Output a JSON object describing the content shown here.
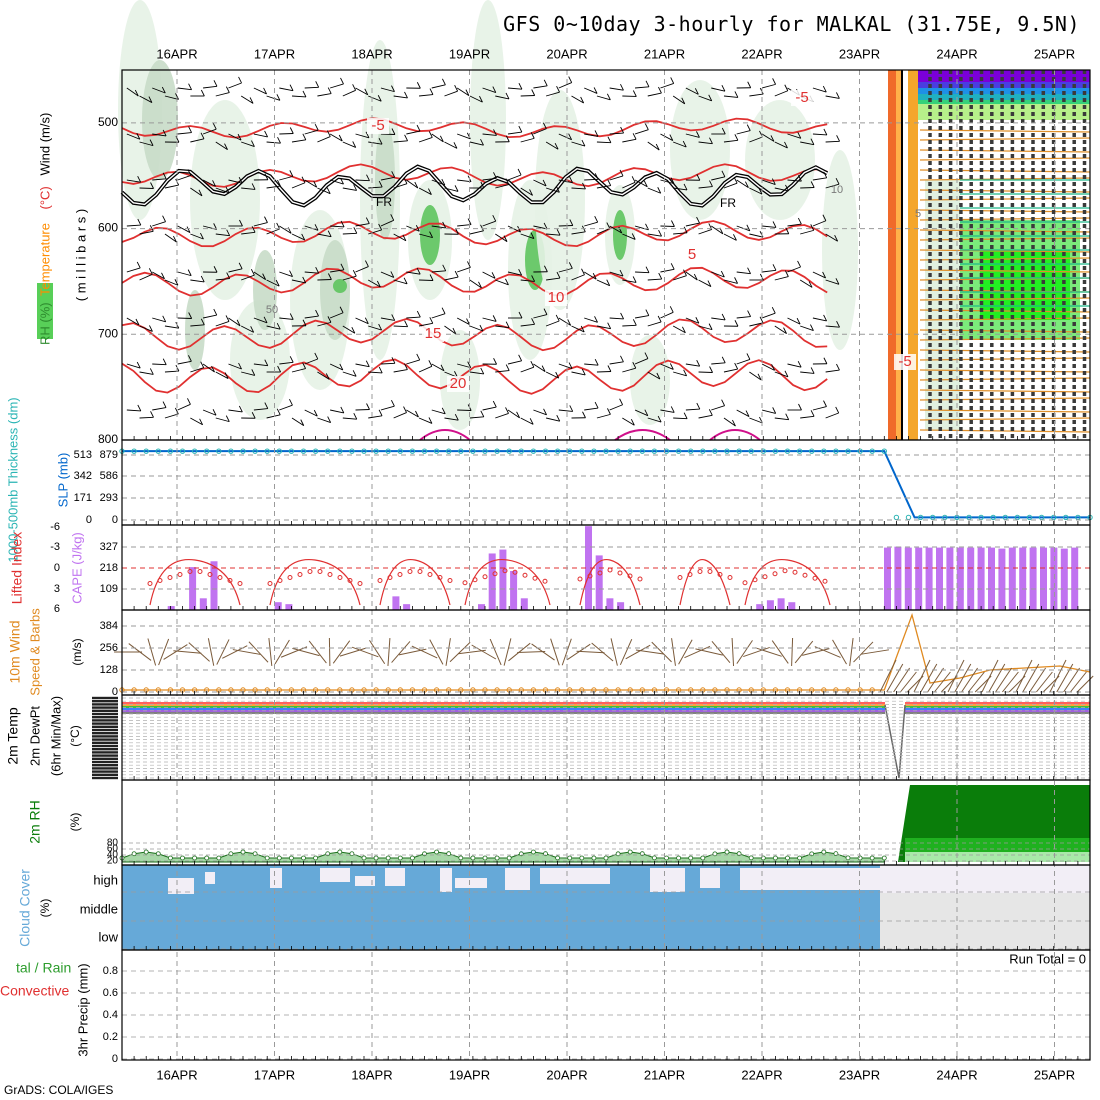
{
  "header": {
    "title": "GFS 0~10day 3-hourly for MALKAL (31.75E, 9.5N)",
    "footer": "GrADS: COLA/IGES"
  },
  "days": [
    "16APR",
    "17APR",
    "18APR",
    "19APR",
    "20APR",
    "21APR",
    "22APR",
    "23APR",
    "24APR",
    "25APR"
  ],
  "chart_data": [
    {
      "type": "line",
      "panel": "upper-air",
      "ylabel_parts": [
        {
          "text": "RH (%)",
          "color": "#2e8b2e"
        },
        {
          "text": "Temperature",
          "color": "#ff8c00"
        },
        {
          "text": "(°C)",
          "color": "#e03030"
        },
        {
          "text": "Wind (m/s)",
          "color": "#000000"
        }
      ],
      "yunit": "( m i l l i b a r s )",
      "yticks": [
        "500",
        "600",
        "700",
        "800"
      ],
      "ylim": [
        450,
        800
      ],
      "isotherm_labels": [
        "-5",
        "-5",
        "5",
        "10",
        "15",
        "20",
        "-5"
      ],
      "freezing_labels": [
        "FR",
        "FR"
      ],
      "rh_labels": [
        "50",
        "10",
        "5"
      ],
      "isotherms": [
        {
          "label": "-5",
          "level": 505
        },
        {
          "label": "0",
          "level": 550
        },
        {
          "label": "5",
          "level": 605
        },
        {
          "label": "10",
          "level": 650
        },
        {
          "label": "15",
          "level": 700
        },
        {
          "label": "20",
          "level": 740
        }
      ]
    },
    {
      "type": "line",
      "panel": "thickness-slp",
      "ylabel_left": "1000-500mb Thickness (dm)",
      "ylabel_right": "SLP (mb)",
      "left_ticks": [
        "513",
        "342",
        "171",
        "0"
      ],
      "right_ticks": [
        "879",
        "586",
        "293",
        "0"
      ],
      "ylim": [
        0,
        900
      ],
      "series": [
        {
          "name": "SLP",
          "x": [
            0,
            58
          ],
          "values": [
            860,
            860
          ]
        },
        {
          "name": "SLP",
          "x": [
            58,
            61,
            80
          ],
          "values": [
            860,
            20,
            20
          ]
        }
      ]
    },
    {
      "type": "bar",
      "panel": "li-cape",
      "ylabel_left": "Lifted Index",
      "ylabel_right": "CAPE (J/kg)",
      "left_ticks": [
        "-6",
        "-3",
        "0",
        "3",
        "6"
      ],
      "right_ticks": [
        "327",
        "218",
        "109"
      ],
      "ylim": [
        0,
        436
      ],
      "cape_values": [
        0,
        0,
        0,
        20,
        220,
        60,
        250,
        0,
        0,
        0,
        0,
        0,
        0,
        40,
        30,
        0,
        0,
        0,
        0,
        0,
        0,
        0,
        0,
        0,
        0,
        0,
        0,
        0,
        0,
        0,
        0,
        0,
        0,
        0,
        0,
        0,
        0,
        30,
        290,
        310,
        200,
        60,
        0,
        0,
        0,
        0,
        0,
        0,
        0,
        0,
        0,
        0,
        0,
        0,
        0,
        0,
        0,
        0,
        430,
        280,
        60,
        40,
        0,
        0,
        0,
        0,
        0,
        0,
        0,
        0,
        0,
        0,
        0,
        0,
        0,
        0,
        0,
        0,
        0,
        0,
        0,
        0,
        0,
        0,
        0,
        0,
        0,
        0,
        20,
        0,
        0,
        0,
        0,
        0,
        0,
        0,
        0,
        0,
        0,
        30,
        50,
        60,
        40,
        0,
        0,
        0,
        0,
        0,
        0,
        0,
        0,
        0,
        0,
        0,
        0,
        0,
        0,
        0,
        0,
        0,
        0,
        0,
        0,
        0,
        0,
        0,
        0,
        0,
        0,
        0,
        0,
        0,
        0,
        0,
        0,
        0,
        0,
        0,
        0,
        0,
        0,
        0,
        0,
        0,
        0,
        0,
        0,
        0,
        0,
        0,
        0,
        0,
        0,
        0,
        0,
        0,
        0,
        0,
        0,
        0,
        0,
        0,
        0,
        0,
        0,
        0,
        0,
        0,
        0,
        0,
        0,
        0,
        0,
        0,
        0,
        0,
        0,
        0,
        0,
        0,
        0,
        0,
        0,
        0,
        0,
        0,
        0,
        0,
        0,
        0,
        0,
        0,
        0,
        0,
        0,
        0,
        0,
        0,
        0,
        0,
        0,
        0
      ],
      "cape_late_values": [
        320,
        325,
        320,
        320,
        320,
        320,
        320,
        320,
        320,
        320,
        320,
        315,
        320,
        320,
        320,
        320,
        320,
        315,
        320
      ]
    },
    {
      "type": "line",
      "panel": "wind10m",
      "ylabel_main": "10m Wind",
      "ylabel_sub": "Speed & Barbs",
      "yunit": "(m/s)",
      "yticks": [
        "384",
        "256",
        "128",
        "0"
      ],
      "ylim": [
        0,
        420
      ],
      "series": [
        {
          "name": "Speed",
          "x": [
            0,
            58,
            61,
            62,
            64,
            66,
            68,
            70,
            72,
            74,
            76,
            78,
            80
          ],
          "values": [
            2,
            2,
            450,
            20,
            30,
            40,
            110,
            120,
            120,
            125,
            120,
            115,
            110
          ]
        }
      ]
    },
    {
      "type": "line",
      "panel": "temp2m",
      "ylabel_main": "2m Temp",
      "ylabel_sub": "2m DewPt",
      "ylabel_sub2": "(6hr Min/Max)",
      "yunit": "(°C)",
      "ylim": [
        0,
        1
      ]
    },
    {
      "type": "area",
      "panel": "rh2m",
      "ylabel": "2m RH",
      "yunit": "(%)",
      "yticks": [
        "80",
        "60",
        "40",
        "20"
      ],
      "ylim": [
        0,
        100
      ]
    },
    {
      "type": "bar",
      "panel": "cloud",
      "ylabel": "Cloud Cover",
      "yunit": "(%)",
      "categories": [
        "high",
        "middle",
        "low"
      ]
    },
    {
      "type": "bar",
      "panel": "precip",
      "ylabel_parts": [
        {
          "text": "tal / Rain",
          "color": "#2e9d2e"
        },
        {
          "text": "Convective",
          "color": "#e03030"
        }
      ],
      "ylabel_main": "3hr Precip (mm)",
      "yticks": [
        "0.8",
        "0.6",
        "0.4",
        "0.2",
        "0"
      ],
      "ylim": [
        0,
        1
      ],
      "run_total": "Run Total = 0"
    }
  ],
  "colors": {
    "grid": "#9a9a9a",
    "temp": "#e03030",
    "freezing": "#000000",
    "rh_light": "#e6f2e6",
    "rh_mid": "#c8dcc8",
    "rh_high": "#5ec45e",
    "cape": "#c073f0",
    "li": "#e03030",
    "slp": "#0066cc",
    "thickness": "#2bb5b5",
    "wind": "#e08a20",
    "rh2m": "#0a7d0a",
    "cloud": "#66a9d8",
    "cloud_bg_hi": "#f2eef6",
    "cloud_bg_gray": "#e6e6e6"
  }
}
